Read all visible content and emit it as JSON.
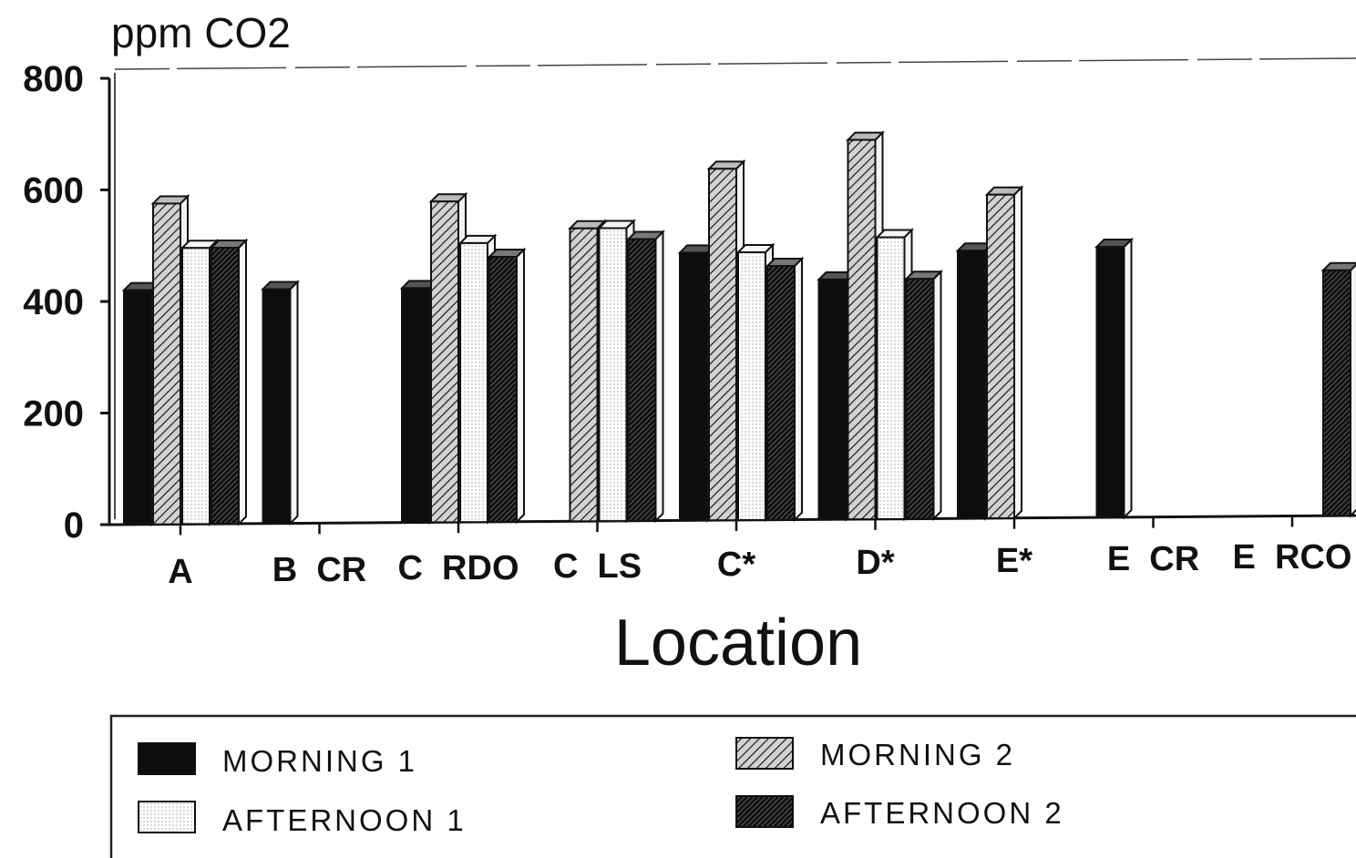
{
  "chart_data": {
    "type": "bar",
    "ylabel": "ppm CO2",
    "xlabel": "Location",
    "ylim": [
      0,
      800
    ],
    "yticks": [
      0,
      200,
      400,
      600,
      800
    ],
    "categories": [
      "A",
      "B  CR",
      "C  RDO",
      "C  LS",
      "C*",
      "D*",
      "E*",
      "E  CR",
      "E  RCO"
    ],
    "series": [
      {
        "name": "MORNING 1",
        "color": "#111111",
        "pattern": "solid",
        "values": [
          420,
          420,
          420,
          null,
          480,
          430,
          480,
          485,
          null
        ]
      },
      {
        "name": "MORNING 2",
        "color": "#9a9a9a",
        "pattern": "hatch",
        "values": [
          575,
          null,
          575,
          525,
          630,
          680,
          580,
          null,
          null
        ]
      },
      {
        "name": "AFTERNOON 1",
        "color": "#ffffff",
        "pattern": "open",
        "values": [
          495,
          null,
          500,
          525,
          480,
          505,
          null,
          null,
          null
        ]
      },
      {
        "name": "AFTERNOON 2",
        "color": "#2a2a2a",
        "pattern": "dense-hatch",
        "values": [
          495,
          null,
          475,
          505,
          455,
          430,
          null,
          null,
          440
        ]
      }
    ],
    "grid": false,
    "legend_position": "bottom"
  }
}
